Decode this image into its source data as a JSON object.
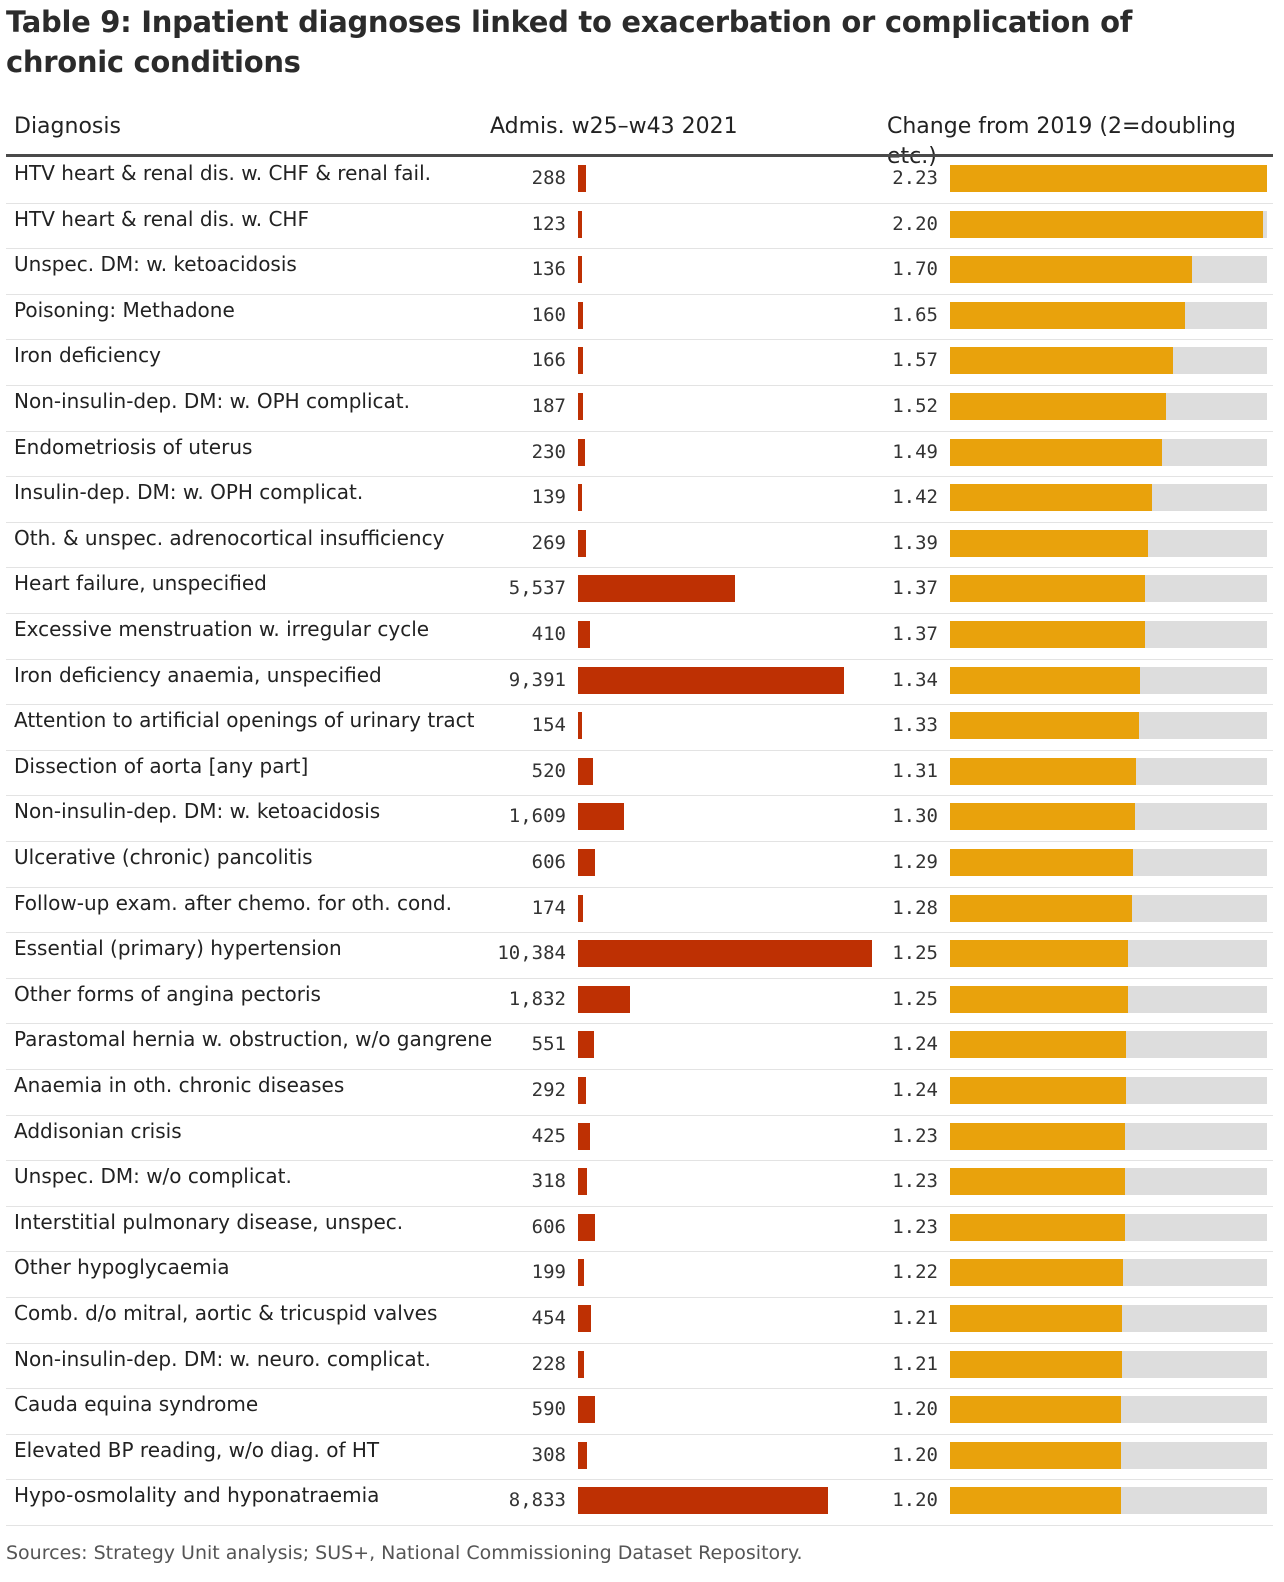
{
  "title": "Table 9: Inpatient diagnoses linked to exacerbation or complication of chronic conditions",
  "headers": {
    "diagnosis": "Diagnosis",
    "admissions": "Admis. w25–w43 2021",
    "change": "Change from 2019 (2=doubling etc.)"
  },
  "colors": {
    "admissions_bar": "#be3003",
    "change_bar": "#e9a20c",
    "track": "#dddddd"
  },
  "chart_data": {
    "type": "table",
    "title": "Table 9: Inpatient diagnoses linked to exacerbation or complication of chronic conditions",
    "columns": [
      "Diagnosis",
      "Admis. w25–w43 2021",
      "Change from 2019 (2=doubling etc.)"
    ],
    "admissions_max": 10384,
    "change_max": 2.23,
    "rows": [
      {
        "diagnosis": "HTV heart & renal dis. w. CHF & renal fail.",
        "admissions": 288,
        "admissions_label": "288",
        "change": 2.23,
        "change_label": "2.23"
      },
      {
        "diagnosis": "HTV heart & renal dis. w. CHF",
        "admissions": 123,
        "admissions_label": "123",
        "change": 2.2,
        "change_label": "2.20"
      },
      {
        "diagnosis": "Unspec. DM: w. ketoacidosis",
        "admissions": 136,
        "admissions_label": "136",
        "change": 1.7,
        "change_label": "1.70"
      },
      {
        "diagnosis": "Poisoning: Methadone",
        "admissions": 160,
        "admissions_label": "160",
        "change": 1.65,
        "change_label": "1.65"
      },
      {
        "diagnosis": "Iron deficiency",
        "admissions": 166,
        "admissions_label": "166",
        "change": 1.57,
        "change_label": "1.57"
      },
      {
        "diagnosis": "Non-insulin-dep. DM: w. OPH complicat.",
        "admissions": 187,
        "admissions_label": "187",
        "change": 1.52,
        "change_label": "1.52"
      },
      {
        "diagnosis": "Endometriosis of uterus",
        "admissions": 230,
        "admissions_label": "230",
        "change": 1.49,
        "change_label": "1.49"
      },
      {
        "diagnosis": "Insulin-dep. DM: w. OPH complicat.",
        "admissions": 139,
        "admissions_label": "139",
        "change": 1.42,
        "change_label": "1.42"
      },
      {
        "diagnosis": "Oth. & unspec. adrenocortical insufficiency",
        "admissions": 269,
        "admissions_label": "269",
        "change": 1.39,
        "change_label": "1.39"
      },
      {
        "diagnosis": "Heart failure, unspecified",
        "admissions": 5537,
        "admissions_label": "5,537",
        "change": 1.37,
        "change_label": "1.37"
      },
      {
        "diagnosis": "Excessive menstruation w. irregular cycle",
        "admissions": 410,
        "admissions_label": "410",
        "change": 1.37,
        "change_label": "1.37"
      },
      {
        "diagnosis": "Iron deficiency anaemia, unspecified",
        "admissions": 9391,
        "admissions_label": "9,391",
        "change": 1.34,
        "change_label": "1.34"
      },
      {
        "diagnosis": "Attention to artificial openings of urinary tract",
        "admissions": 154,
        "admissions_label": "154",
        "change": 1.33,
        "change_label": "1.33"
      },
      {
        "diagnosis": "Dissection of aorta [any part]",
        "admissions": 520,
        "admissions_label": "520",
        "change": 1.31,
        "change_label": "1.31"
      },
      {
        "diagnosis": "Non-insulin-dep. DM: w. ketoacidosis",
        "admissions": 1609,
        "admissions_label": "1,609",
        "change": 1.3,
        "change_label": "1.30"
      },
      {
        "diagnosis": "Ulcerative (chronic) pancolitis",
        "admissions": 606,
        "admissions_label": "606",
        "change": 1.29,
        "change_label": "1.29"
      },
      {
        "diagnosis": "Follow-up exam. after chemo. for oth. cond.",
        "admissions": 174,
        "admissions_label": "174",
        "change": 1.28,
        "change_label": "1.28"
      },
      {
        "diagnosis": "Essential (primary) hypertension",
        "admissions": 10384,
        "admissions_label": "10,384",
        "change": 1.25,
        "change_label": "1.25"
      },
      {
        "diagnosis": "Other forms of angina pectoris",
        "admissions": 1832,
        "admissions_label": "1,832",
        "change": 1.25,
        "change_label": "1.25"
      },
      {
        "diagnosis": "Parastomal hernia w. obstruction, w/o gangrene",
        "admissions": 551,
        "admissions_label": "551",
        "change": 1.24,
        "change_label": "1.24"
      },
      {
        "diagnosis": "Anaemia in oth. chronic diseases",
        "admissions": 292,
        "admissions_label": "292",
        "change": 1.24,
        "change_label": "1.24"
      },
      {
        "diagnosis": "Addisonian crisis",
        "admissions": 425,
        "admissions_label": "425",
        "change": 1.23,
        "change_label": "1.23"
      },
      {
        "diagnosis": "Unspec. DM: w/o complicat.",
        "admissions": 318,
        "admissions_label": "318",
        "change": 1.23,
        "change_label": "1.23"
      },
      {
        "diagnosis": "Interstitial pulmonary disease, unspec.",
        "admissions": 606,
        "admissions_label": "606",
        "change": 1.23,
        "change_label": "1.23"
      },
      {
        "diagnosis": "Other hypoglycaemia",
        "admissions": 199,
        "admissions_label": "199",
        "change": 1.22,
        "change_label": "1.22"
      },
      {
        "diagnosis": "Comb. d/o mitral, aortic & tricuspid valves",
        "admissions": 454,
        "admissions_label": "454",
        "change": 1.21,
        "change_label": "1.21"
      },
      {
        "diagnosis": "Non-insulin-dep. DM: w. neuro. complicat.",
        "admissions": 228,
        "admissions_label": "228",
        "change": 1.21,
        "change_label": "1.21"
      },
      {
        "diagnosis": "Cauda equina syndrome",
        "admissions": 590,
        "admissions_label": "590",
        "change": 1.2,
        "change_label": "1.20"
      },
      {
        "diagnosis": "Elevated BP reading, w/o diag. of HT",
        "admissions": 308,
        "admissions_label": "308",
        "change": 1.2,
        "change_label": "1.20"
      },
      {
        "diagnosis": "Hypo-osmolality and hyponatraemia",
        "admissions": 8833,
        "admissions_label": "8,833",
        "change": 1.2,
        "change_label": "1.20"
      }
    ]
  },
  "source": "Sources: Strategy Unit analysis; SUS+, National Commissioning Dataset Repository."
}
